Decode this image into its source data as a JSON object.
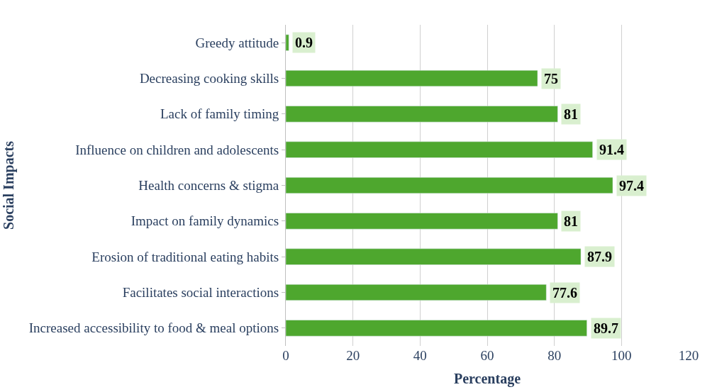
{
  "chart_data": {
    "type": "bar",
    "orientation": "horizontal",
    "xlabel": "Percentage",
    "ylabel": "Social Impacts",
    "categories": [
      "Greedy attitude",
      "Decreasing cooking skills",
      "Lack of family timing",
      "Influence on children and adolescents",
      "Health concerns & stigma",
      "Impact on family dynamics",
      "Erosion of traditional eating habits",
      "Facilitates social interactions",
      "Increased accessibility to food & meal options"
    ],
    "values": [
      0.9,
      75,
      81,
      91.4,
      97.4,
      81,
      87.9,
      77.6,
      89.7
    ],
    "color": "#4ea72e",
    "xlim": [
      0,
      120
    ],
    "xticks": [
      0,
      20,
      40,
      60,
      80,
      100,
      120
    ],
    "grid": "x",
    "data_labels": true,
    "legend": false
  }
}
